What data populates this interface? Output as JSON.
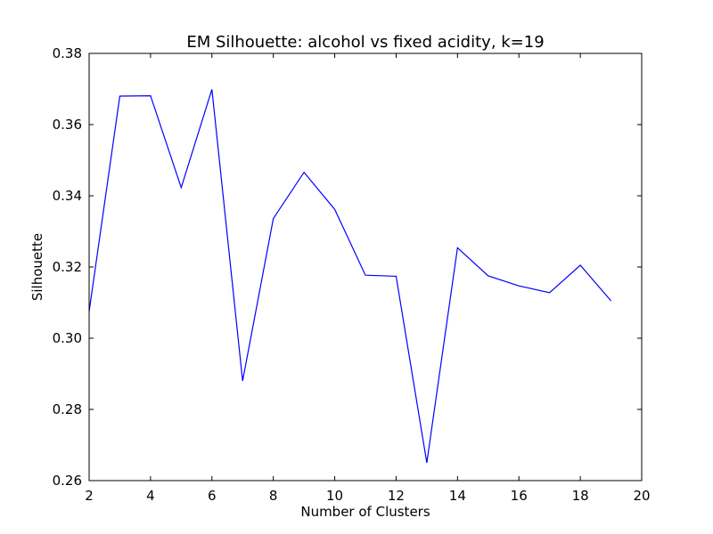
{
  "chart_data": {
    "type": "line",
    "title": "EM Silhouette: alcohol vs fixed acidity, k=19",
    "xlabel": "Number of Clusters",
    "ylabel": "Silhouette",
    "xlim": [
      2,
      20
    ],
    "ylim": [
      0.26,
      0.38
    ],
    "xticks": [
      "2",
      "4",
      "6",
      "8",
      "10",
      "12",
      "14",
      "16",
      "18",
      "20"
    ],
    "yticks": [
      "0.26",
      "0.28",
      "0.30",
      "0.32",
      "0.34",
      "0.36",
      "0.38"
    ],
    "grid": false,
    "series": [
      {
        "color": "#0000ff",
        "x": [
          2,
          3,
          4,
          5,
          6,
          7,
          8,
          9,
          10,
          11,
          12,
          13,
          14,
          15,
          16,
          17,
          18,
          19
        ],
        "y": [
          0.3075,
          0.368,
          0.3681,
          0.3423,
          0.3699,
          0.288,
          0.3336,
          0.3466,
          0.3362,
          0.3177,
          0.3174,
          0.265,
          0.3254,
          0.3175,
          0.3147,
          0.3128,
          0.3205,
          0.3105
        ]
      }
    ]
  }
}
